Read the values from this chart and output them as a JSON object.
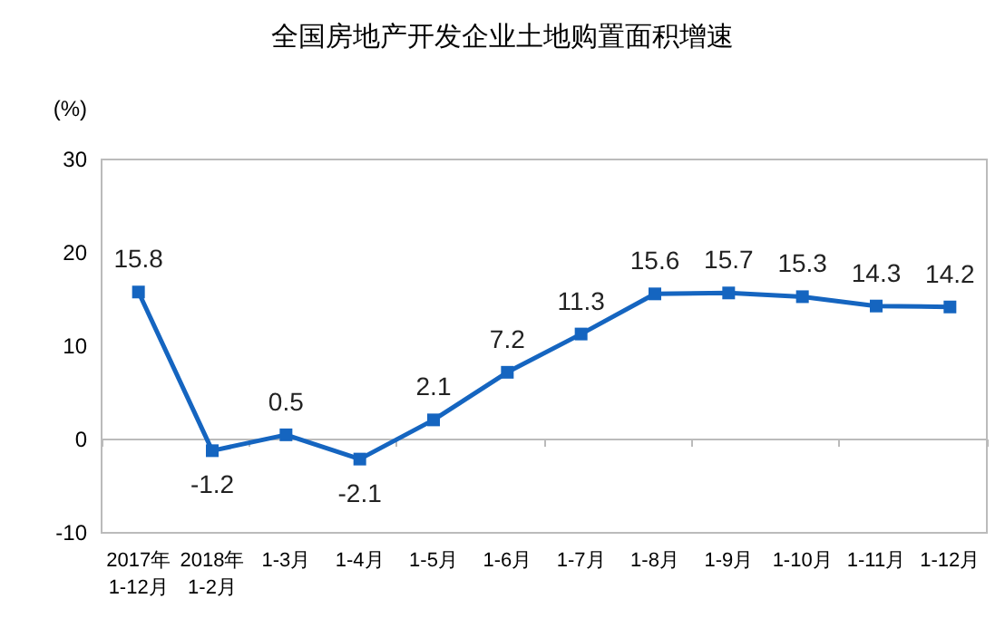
{
  "chart_data": {
    "type": "line",
    "title": "全国房地产开发企业土地购置面积增速",
    "ylabel": "(%)",
    "categories": [
      "2017年\n1-12月",
      "2018年\n1-2月",
      "1-3月",
      "1-4月",
      "1-5月",
      "1-6月",
      "1-7月",
      "1-8月",
      "1-9月",
      "1-10月",
      "1-11月",
      "1-12月"
    ],
    "series": [
      {
        "color": "#1565c0",
        "values": [
          15.8,
          -1.2,
          0.5,
          -2.1,
          2.1,
          7.2,
          11.3,
          15.6,
          15.7,
          15.3,
          14.3,
          14.2
        ]
      }
    ],
    "ylim": [
      -10,
      30
    ],
    "yticks": [
      -10,
      0,
      10,
      20,
      30
    ],
    "marker": "square",
    "line_style": "solid",
    "data_labels": true
  }
}
